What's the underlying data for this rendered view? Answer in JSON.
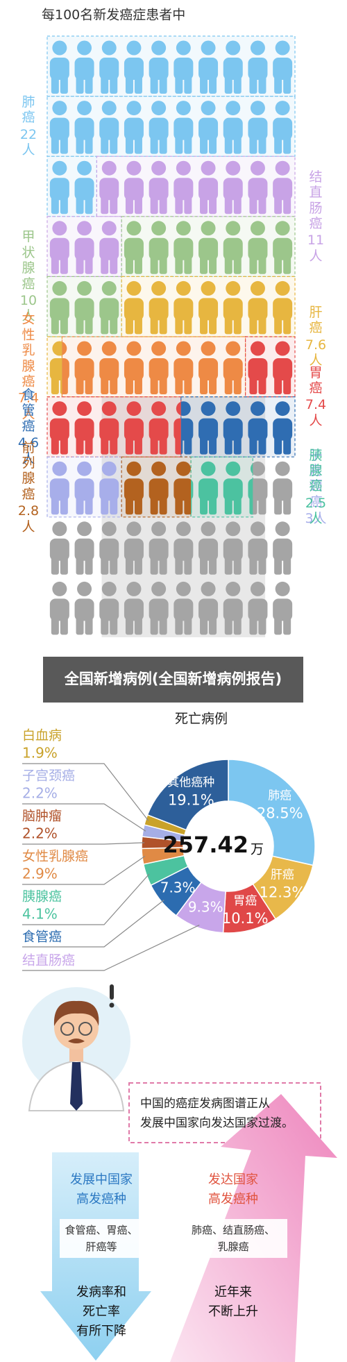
{
  "chart_data": [
    {
      "type": "pictograph",
      "title": "每100名新发癌症患者中",
      "categories": [
        "肺癌",
        "结直肠癌",
        "甲状腺癌",
        "肝癌",
        "女性乳腺癌",
        "胃癌",
        "食管癌",
        "子宫颈癌",
        "前列腺癌",
        "胰腺癌"
      ],
      "values": [
        22,
        11,
        10,
        7.6,
        7.4,
        7.4,
        4.6,
        3,
        2.8,
        2.5
      ],
      "value_labels": [
        "22人",
        "11人",
        "10人",
        "7.6人",
        "7.4人",
        "7.4人",
        "4.6人",
        "3人",
        "2.8人",
        "2.5人"
      ],
      "colors": [
        "#7cc6f0",
        "#c8a3e6",
        "#9cc68b",
        "#e7b640",
        "#ee8a45",
        "#e44a4a",
        "#2f6db2",
        "#a7aeea",
        "#b3621f",
        "#4cc2a0"
      ]
    },
    {
      "type": "pie",
      "title": "死亡病例",
      "categories": [
        "肺癌",
        "肝癌",
        "胃癌",
        "结直肠癌",
        "食管癌",
        "胰腺癌",
        "女性乳腺癌",
        "脑肿瘤",
        "子宫颈癌",
        "白血病",
        "其他癌种"
      ],
      "values": [
        28.5,
        12.3,
        10.1,
        9.3,
        7.3,
        4.1,
        2.9,
        2.2,
        2.2,
        1.9,
        19.1
      ],
      "value_labels": [
        "28.5%",
        "12.3%",
        "10.1%",
        "9.3%",
        "7.3%",
        "4.1%",
        "2.9%",
        "2.2%",
        "2.2%",
        "1.9%",
        "19.1%"
      ],
      "colors": [
        "#7cc6f0",
        "#e8b84a",
        "#e04848",
        "#c8a6ea",
        "#2c6cb0",
        "#4cc39f",
        "#e08a45",
        "#b0522a",
        "#a5aee6",
        "#c9a22a",
        "#2d5f9a"
      ],
      "donut": true,
      "center_value": "257.42",
      "center_unit": "万"
    }
  ],
  "caption": "全国新增病例(全国新增病例报告)",
  "illustration": {
    "speech": [
      "中国的癌症发病图谱正从",
      "发展中国家向发达国家过渡。"
    ],
    "developing": {
      "heading": [
        "发展中国家",
        "高发癌种"
      ],
      "cancers": [
        "食管癌、胃癌、",
        "肝癌等"
      ],
      "trend": [
        "发病率和",
        "死亡率",
        "有所下降"
      ]
    },
    "developed": {
      "heading": [
        "发达国家",
        "高发癌种"
      ],
      "cancers": [
        "肺癌、结直肠癌、",
        "乳腺癌"
      ],
      "trend": [
        "近年来",
        "不断上升"
      ]
    }
  }
}
